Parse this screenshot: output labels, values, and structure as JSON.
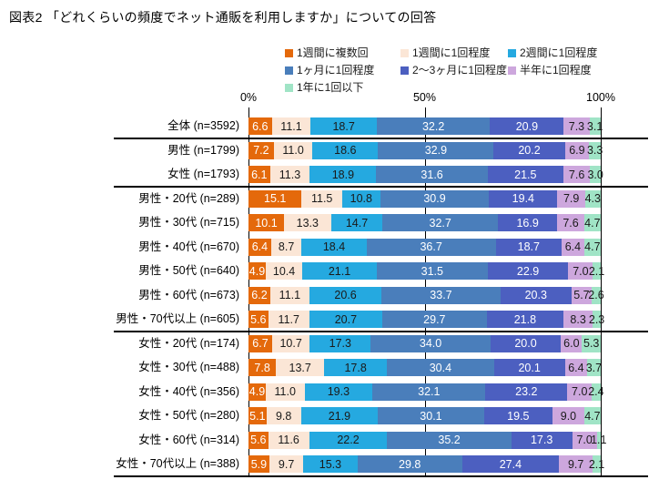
{
  "title": "図表2 「どれくらいの頻度でネット通販を利用しますか」についての回答",
  "chart_data": {
    "type": "bar",
    "stacked": true,
    "orientation": "horizontal",
    "title": "図表2 「どれくらいの頻度でネット通販を利用しますか」についての回答",
    "value_unit": "%",
    "x_axis": {
      "ticks": [
        "0%",
        "50%",
        "100%"
      ],
      "range": [
        0,
        100
      ],
      "grid": true
    },
    "legend_position": "top",
    "legend": [
      {
        "label": "1週間に複数回",
        "color": "#E4690B",
        "value_text_color": "#ffffff"
      },
      {
        "label": "1週間に1回程度",
        "color": "#FBE6D6",
        "value_text_color": "#1a1a1a"
      },
      {
        "label": "2週間に1回程度",
        "color": "#25A9E0",
        "value_text_color": "#1a1a1a"
      },
      {
        "label": "1ヶ月に1回程度",
        "color": "#4A7EBB",
        "value_text_color": "#ffffff"
      },
      {
        "label": "2～3ヶ月に1回程度",
        "color": "#4C5FC0",
        "value_text_color": "#ffffff"
      },
      {
        "label": "半年に1回程度",
        "color": "#CDA7DD",
        "value_text_color": "#1a1a1a"
      },
      {
        "label": "1年に1回以下",
        "color": "#A0E4C6",
        "value_text_color": "#1a1a1a"
      }
    ],
    "categories": [
      "全体 (n=3592)",
      "男性 (n=1799)",
      "女性 (n=1793)",
      "男性・20代 (n=289)",
      "男性・30代 (n=715)",
      "男性・40代 (n=670)",
      "男性・50代 (n=640)",
      "男性・60代 (n=673)",
      "男性・70代以上 (n=605)",
      "女性・20代 (n=174)",
      "女性・30代 (n=488)",
      "女性・40代 (n=356)",
      "女性・50代 (n=280)",
      "女性・60代 (n=314)",
      "女性・70代以上 (n=388)"
    ],
    "series": [
      {
        "name": "1週間に複数回",
        "values": [
          6.6,
          7.2,
          6.1,
          15.1,
          10.1,
          6.4,
          4.9,
          6.2,
          5.6,
          6.7,
          7.8,
          4.9,
          5.1,
          5.6,
          5.9
        ]
      },
      {
        "name": "1週間に1回程度",
        "values": [
          11.1,
          11.0,
          11.3,
          11.5,
          13.3,
          8.7,
          10.4,
          11.1,
          11.7,
          10.7,
          13.7,
          11.0,
          9.8,
          11.6,
          9.7
        ]
      },
      {
        "name": "2週間に1回程度",
        "values": [
          18.7,
          18.6,
          18.9,
          10.8,
          14.7,
          18.4,
          21.1,
          20.6,
          20.7,
          17.3,
          17.8,
          19.3,
          21.9,
          22.2,
          15.3
        ]
      },
      {
        "name": "1ヶ月に1回程度",
        "values": [
          32.2,
          32.9,
          31.6,
          30.9,
          32.7,
          36.7,
          31.5,
          33.7,
          29.7,
          34.0,
          30.4,
          32.1,
          30.1,
          35.2,
          29.8
        ]
      },
      {
        "name": "2～3ヶ月に1回程度",
        "values": [
          20.9,
          20.2,
          21.5,
          19.4,
          16.9,
          18.7,
          22.9,
          20.3,
          21.8,
          20.0,
          20.1,
          23.2,
          19.5,
          17.3,
          27.4
        ]
      },
      {
        "name": "半年に1回程度",
        "values": [
          7.3,
          6.9,
          7.6,
          7.9,
          7.6,
          6.4,
          7.0,
          5.7,
          8.3,
          6.0,
          6.4,
          7.0,
          9.0,
          7.0,
          9.7
        ]
      },
      {
        "name": "1年に1回以下",
        "values": [
          3.1,
          3.3,
          3.0,
          4.3,
          4.7,
          4.7,
          2.1,
          2.6,
          2.3,
          5.3,
          3.7,
          2.4,
          4.7,
          1.1,
          2.1
        ]
      }
    ],
    "group_separators_after_category_index": [
      0,
      2,
      8,
      14
    ]
  }
}
